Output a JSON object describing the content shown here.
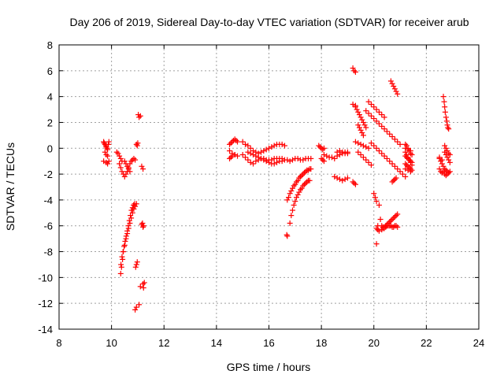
{
  "chart_data": {
    "type": "scatter",
    "title": "Day 206 of 2019, Sidereal Day-to-day VTEC variation (SDTVAR) for receiver arub",
    "xlabel": "GPS time / hours",
    "ylabel": "SDTVAR / TECUs",
    "xlim": [
      8,
      24
    ],
    "ylim": [
      -14,
      8
    ],
    "xticks": [
      "8",
      "10",
      "12",
      "14",
      "16",
      "18",
      "20",
      "22",
      "24"
    ],
    "yticks": [
      "-14",
      "-12",
      "-10",
      "-8",
      "-6",
      "-4",
      "-2",
      "0",
      "2",
      "4",
      "6",
      "8"
    ],
    "grid": true,
    "marker": "plus",
    "color": "#ff0000",
    "series": [
      {
        "x": [
          9.7,
          9.72,
          9.75,
          9.78,
          9.8,
          9.83,
          9.85,
          9.88,
          9.9,
          9.75,
          9.8,
          9.85,
          9.7,
          9.8,
          9.85,
          9.9,
          10.2,
          10.25,
          10.3,
          10.35,
          10.4,
          10.3,
          10.35,
          10.4,
          10.45,
          10.5,
          10.55,
          10.6,
          10.65,
          10.7,
          10.75,
          10.8,
          10.85,
          10.9,
          10.5,
          10.55,
          10.6,
          10.65,
          10.7,
          10.35,
          10.38,
          10.42,
          10.45,
          10.5,
          10.55,
          10.6,
          10.65,
          10.7,
          10.75,
          10.8,
          10.85,
          10.9,
          10.95,
          10.36,
          10.4,
          10.44,
          10.48,
          10.52,
          10.56,
          10.6,
          10.64,
          10.68,
          10.72,
          10.76,
          10.8,
          10.84,
          10.88,
          10.95,
          10.98,
          11.0,
          10.9,
          10.95,
          11.05,
          11.1,
          11.2,
          11.22,
          11.25,
          11.18,
          11.22,
          11.15,
          11.2,
          10.92,
          10.95,
          10.98,
          11.02,
          11.05,
          11.1,
          11.15,
          11.2
        ],
        "y": [
          0.5,
          0.4,
          0.3,
          0.2,
          0.1,
          0.0,
          -0.1,
          0.3,
          0.5,
          -0.3,
          -0.5,
          -0.6,
          -1.0,
          -1.1,
          -1.2,
          -1.0,
          -0.3,
          -0.4,
          -0.6,
          -0.8,
          -1.0,
          -1.2,
          -1.5,
          -1.8,
          -2.0,
          -2.2,
          -2.0,
          -1.8,
          -1.5,
          -1.2,
          -1.0,
          -0.9,
          -0.8,
          -0.9,
          -1.0,
          -1.2,
          -1.4,
          -1.6,
          -1.8,
          -9.7,
          -9.2,
          -8.6,
          -8.0,
          -7.5,
          -7.0,
          -6.6,
          -6.2,
          -5.8,
          -5.4,
          -5.0,
          -4.7,
          -4.5,
          -4.3,
          -9.0,
          -8.4,
          -8.0,
          -7.6,
          -7.2,
          -6.8,
          -6.4,
          -6.0,
          -5.6,
          -5.2,
          -4.8,
          -4.6,
          -4.4,
          -4.3,
          0.3,
          0.2,
          0.4,
          -12.5,
          -12.3,
          -12.1,
          -10.7,
          -10.5,
          -10.8,
          -10.4,
          -5.8,
          -6.0,
          -1.4,
          -1.6,
          -9.2,
          -9.0,
          -8.8,
          2.6,
          2.4,
          2.5,
          -5.9,
          -6.1
        ]
      },
      {
        "x": [
          14.5,
          14.55,
          14.6,
          14.65,
          14.7,
          14.75,
          14.8,
          14.5,
          14.6,
          14.7,
          14.8,
          14.5,
          14.55,
          14.6,
          14.7,
          15.0,
          15.1,
          15.2,
          15.3,
          15.4,
          15.5,
          15.6,
          15.7,
          15.8,
          15.9,
          16.0,
          16.1,
          16.2,
          16.3,
          16.4,
          16.5,
          16.6,
          15.0,
          15.1,
          15.2,
          15.3,
          15.4,
          15.5,
          15.6,
          15.7,
          15.8,
          15.9,
          16.0,
          16.1,
          16.2,
          16.3,
          16.4,
          16.5,
          15.2,
          15.3,
          15.4,
          15.5,
          15.6,
          15.7,
          15.8,
          15.9,
          16.0,
          16.1,
          16.2,
          16.3,
          16.4,
          16.5,
          16.6,
          16.7,
          16.8,
          16.9,
          17.0,
          17.1,
          17.2,
          17.3,
          17.4,
          17.5,
          17.6,
          16.7,
          16.75,
          16.8,
          16.85,
          16.9,
          16.95,
          17.0,
          17.05,
          17.1,
          17.15,
          17.2,
          17.25,
          17.3,
          17.35,
          17.4,
          17.45,
          17.5,
          17.55,
          17.6,
          16.8,
          16.85,
          16.9,
          16.95,
          17.0,
          17.05,
          17.1,
          17.15,
          17.2,
          17.25,
          17.3,
          17.35,
          17.4,
          17.45,
          17.5,
          17.55,
          16.7,
          16.68
        ],
        "y": [
          0.3,
          0.4,
          0.5,
          0.6,
          0.7,
          0.6,
          0.5,
          -0.2,
          -0.4,
          -0.5,
          -0.6,
          -0.8,
          -0.7,
          -0.6,
          -0.5,
          0.5,
          0.3,
          0.2,
          0.0,
          -0.2,
          -0.3,
          -0.4,
          -0.3,
          -0.2,
          -0.1,
          0.0,
          0.1,
          0.2,
          0.3,
          0.3,
          0.3,
          0.2,
          -0.5,
          -0.7,
          -0.9,
          -1.1,
          -1.2,
          -1.0,
          -0.9,
          -0.8,
          -0.9,
          -1.0,
          -1.1,
          -1.2,
          -1.2,
          -1.1,
          -1.0,
          -1.0,
          -0.3,
          -0.4,
          -0.5,
          -0.6,
          -0.7,
          -0.8,
          -0.8,
          -0.9,
          -0.9,
          -0.9,
          -0.8,
          -0.8,
          -0.8,
          -0.8,
          -0.9,
          -0.9,
          -1.0,
          -0.9,
          -0.8,
          -0.8,
          -0.9,
          -0.9,
          -0.8,
          -0.8,
          -0.8,
          -4.0,
          -3.8,
          -3.5,
          -3.3,
          -3.1,
          -2.9,
          -2.8,
          -2.6,
          -2.5,
          -2.3,
          -2.2,
          -2.1,
          -2.0,
          -1.9,
          -1.8,
          -1.7,
          -1.7,
          -1.6,
          -1.6,
          -5.8,
          -5.2,
          -4.8,
          -4.4,
          -4.1,
          -3.8,
          -3.6,
          -3.4,
          -3.2,
          -3.1,
          -2.9,
          -2.8,
          -2.7,
          -2.6,
          -2.5,
          -2.5,
          -6.8,
          -6.7
        ]
      },
      {
        "x": [
          17.9,
          17.95,
          18.0,
          18.05,
          18.1,
          18.0,
          18.05,
          18.1,
          18.1,
          18.2,
          18.3,
          18.4,
          18.5,
          18.6,
          18.7,
          18.8,
          18.9,
          19.0,
          18.5,
          18.6,
          18.7,
          18.8,
          18.9,
          19.0,
          18.6,
          18.7,
          18.8,
          18.9,
          19.0,
          19.2,
          19.25,
          19.3,
          19.2,
          19.25,
          19.3,
          19.3,
          19.4,
          19.5,
          19.6,
          19.7,
          19.8,
          19.2,
          19.3,
          19.3,
          19.35,
          19.4,
          19.45,
          19.5,
          19.55,
          19.6,
          19.65,
          19.7,
          19.4,
          19.45,
          19.5,
          19.55,
          19.6,
          19.4,
          19.5,
          19.6,
          19.7,
          19.8,
          19.9,
          19.7,
          19.8,
          19.9,
          20.0,
          20.1,
          20.2,
          20.3,
          20.4,
          20.5,
          20.6,
          20.7,
          20.8,
          20.9,
          21.0,
          19.9,
          20.0,
          20.1,
          20.2,
          20.3,
          20.4,
          20.5,
          20.6,
          20.7,
          20.8,
          20.9,
          21.0,
          21.1,
          21.2,
          20.1,
          20.15,
          20.2,
          20.3,
          20.35,
          20.4,
          20.45,
          20.5,
          20.55,
          20.6,
          20.65,
          20.7,
          20.75,
          20.8,
          20.85,
          20.9,
          20.3,
          20.35,
          20.4,
          20.45,
          20.5,
          20.55,
          20.6,
          20.65,
          20.7,
          20.75,
          20.8,
          20.85,
          20.9,
          20.65,
          20.7,
          20.75,
          20.8,
          20.85,
          20.9,
          20.7,
          20.75,
          20.8,
          20.85,
          20.0,
          20.05,
          20.1,
          20.2,
          20.25,
          20.15,
          20.1,
          19.8,
          19.9,
          20.0,
          20.1,
          20.2,
          20.3,
          20.4
        ],
        "y": [
          0.2,
          0.1,
          0.0,
          -0.1,
          0.0,
          -0.8,
          -0.9,
          -1.0,
          -0.5,
          -0.6,
          -0.7,
          -0.7,
          -0.8,
          -0.6,
          -0.5,
          -0.4,
          -0.3,
          -0.4,
          -2.2,
          -2.3,
          -2.4,
          -2.5,
          -2.4,
          -2.3,
          -0.3,
          -0.2,
          -0.3,
          -0.4,
          -0.3,
          6.2,
          6.0,
          5.9,
          -2.6,
          -2.7,
          -2.8,
          0.5,
          0.4,
          0.3,
          0.2,
          0.1,
          0.0,
          3.4,
          3.3,
          3.2,
          3.0,
          2.8,
          2.6,
          2.4,
          2.2,
          2.0,
          1.8,
          1.6,
          1.8,
          1.6,
          1.4,
          1.2,
          1.0,
          -0.3,
          -0.5,
          -0.7,
          -0.9,
          -1.1,
          -1.3,
          2.9,
          2.7,
          2.5,
          2.3,
          2.1,
          1.9,
          1.7,
          1.5,
          1.3,
          1.1,
          0.9,
          0.7,
          0.5,
          0.3,
          0.4,
          0.2,
          0.0,
          -0.2,
          -0.4,
          -0.6,
          -0.8,
          -1.0,
          -1.2,
          -1.4,
          -1.6,
          -1.8,
          -2.0,
          -2.2,
          -6.2,
          -6.3,
          -6.4,
          -6.3,
          -6.2,
          -6.1,
          -6.0,
          -5.9,
          -5.8,
          -5.7,
          -5.6,
          -5.5,
          -5.4,
          -5.3,
          -5.2,
          -5.1,
          -6.0,
          -6.1,
          -6.2,
          -6.1,
          -6.0,
          -6.0,
          -6.0,
          -6.0,
          -6.1,
          -6.1,
          -6.0,
          -6.0,
          -6.1,
          5.2,
          5.0,
          4.8,
          4.6,
          4.4,
          4.2,
          -2.6,
          -2.5,
          -2.4,
          -2.3,
          -3.5,
          -3.8,
          -4.1,
          -4.4,
          -5.5,
          -6.0,
          -7.4,
          3.6,
          3.4,
          3.2,
          3.0,
          2.8,
          2.6,
          2.4
        ]
      },
      {
        "x": [
          21.2,
          21.25,
          21.3,
          21.35,
          21.4,
          21.45,
          21.2,
          21.25,
          21.3,
          21.35,
          21.4,
          21.45,
          21.2,
          21.25,
          21.3,
          21.35,
          21.4,
          21.45,
          21.2,
          21.25,
          21.3,
          21.35,
          21.4,
          21.45,
          21.2,
          21.3,
          21.4,
          21.2,
          21.3,
          21.4,
          22.5,
          22.55,
          22.6,
          22.65,
          22.5,
          22.55,
          22.6,
          22.65,
          22.5,
          22.6,
          22.7,
          22.75,
          22.8,
          22.85,
          22.9,
          22.7,
          22.75,
          22.8,
          22.85,
          22.9,
          22.65,
          22.68,
          22.7,
          22.72,
          22.75,
          22.78,
          22.8,
          22.82,
          22.85,
          22.7,
          22.75,
          22.8,
          22.85,
          22.7,
          22.75,
          22.8,
          22.85,
          22.9
        ],
        "y": [
          0.3,
          0.2,
          0.0,
          -0.2,
          -0.4,
          -0.5,
          -0.6,
          -0.7,
          -0.8,
          -0.9,
          -1.0,
          -1.1,
          -1.2,
          -1.3,
          -1.4,
          -1.5,
          -1.6,
          -1.7,
          -0.3,
          -0.5,
          -0.7,
          -0.9,
          -1.1,
          -1.3,
          0.0,
          -0.1,
          -0.2,
          -1.6,
          -1.7,
          -1.8,
          -0.8,
          -1.0,
          -1.2,
          -1.4,
          -1.6,
          -1.8,
          -1.9,
          -1.8,
          -0.7,
          -0.9,
          -1.6,
          -1.7,
          -1.8,
          -1.9,
          -1.8,
          -0.3,
          -0.5,
          -0.7,
          -0.9,
          -1.1,
          4.0,
          3.6,
          3.2,
          2.8,
          2.4,
          2.1,
          1.8,
          1.6,
          1.5,
          -2.0,
          -2.1,
          -2.0,
          -1.9,
          0.2,
          0.0,
          -0.2,
          -0.4,
          -0.5
        ]
      }
    ]
  }
}
